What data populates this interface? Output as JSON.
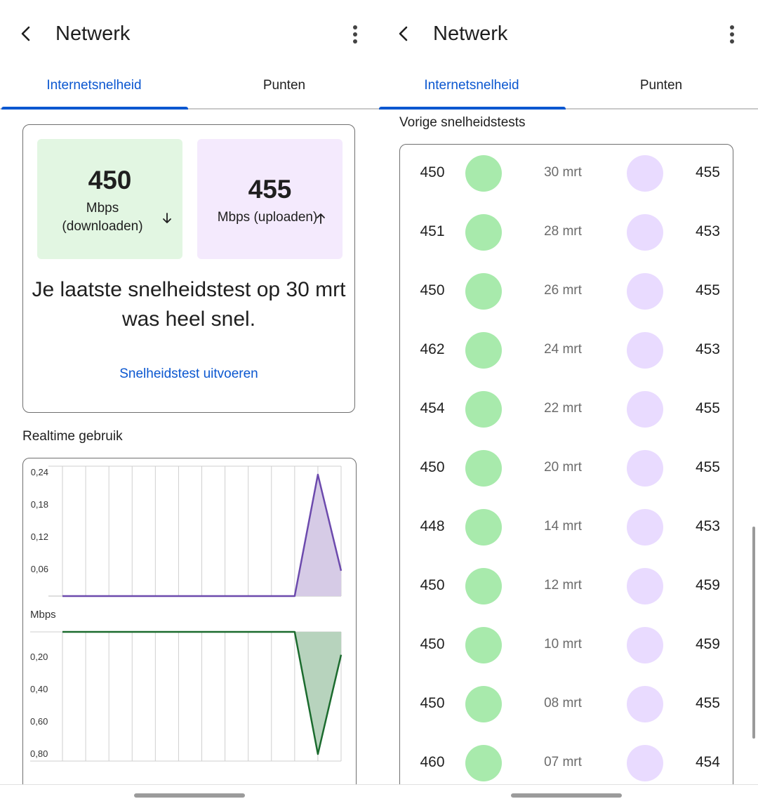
{
  "left": {
    "title": "Netwerk",
    "tabs": [
      "Internetsnelheid",
      "Punten"
    ],
    "download": {
      "value": "450",
      "label": "Mbps (downloaden)"
    },
    "upload": {
      "value": "455",
      "label": "Mbps (uploaden)"
    },
    "summary": "Je laatste snelheidstest op 30 mrt was heel snel.",
    "run_test_label": "Snelheidstest uitvoeren",
    "realtime_label": "Realtime gebruik",
    "colors": {
      "accent": "#0b57d0",
      "download_tile": "#e2f6e2",
      "upload_tile": "#f4eafd"
    }
  },
  "chart_data": [
    {
      "type": "area",
      "ylabel": "",
      "y_ticks": [
        "0,24",
        "0,18",
        "0,12",
        "0,06"
      ],
      "ylim": [
        0,
        0.24
      ],
      "x": [
        0,
        1,
        2,
        3,
        4,
        5,
        6,
        7,
        8,
        9,
        10,
        11,
        12
      ],
      "series": [
        {
          "values": [
            0,
            0,
            0,
            0,
            0,
            0,
            0,
            0,
            0,
            0,
            0,
            0.24,
            0.05
          ],
          "color": "#6c4aad"
        }
      ]
    },
    {
      "type": "area",
      "ylabel": "Mbps",
      "y_ticks": [
        "0,20",
        "0,40",
        "0,60",
        "0,80"
      ],
      "ylim": [
        0,
        0.8
      ],
      "inverted": true,
      "x": [
        0,
        1,
        2,
        3,
        4,
        5,
        6,
        7,
        8,
        9,
        10,
        11,
        12
      ],
      "series": [
        {
          "values": [
            0,
            0,
            0,
            0,
            0,
            0,
            0,
            0,
            0,
            0,
            0,
            0.8,
            0.15
          ],
          "color": "#1b6b2e"
        }
      ]
    }
  ],
  "right": {
    "title": "Netwerk",
    "tabs": [
      "Internetsnelheid",
      "Punten"
    ],
    "history_label": "Vorige snelheidstests",
    "tests": [
      {
        "download": "450",
        "date": "30 mrt",
        "upload": "455"
      },
      {
        "download": "451",
        "date": "28 mrt",
        "upload": "453"
      },
      {
        "download": "450",
        "date": "26 mrt",
        "upload": "455"
      },
      {
        "download": "462",
        "date": "24 mrt",
        "upload": "453"
      },
      {
        "download": "454",
        "date": "22 mrt",
        "upload": "455"
      },
      {
        "download": "450",
        "date": "20 mrt",
        "upload": "455"
      },
      {
        "download": "448",
        "date": "14 mrt",
        "upload": "453"
      },
      {
        "download": "450",
        "date": "12 mrt",
        "upload": "459"
      },
      {
        "download": "450",
        "date": "10 mrt",
        "upload": "459"
      },
      {
        "download": "450",
        "date": "08 mrt",
        "upload": "455"
      },
      {
        "download": "460",
        "date": "07 mrt",
        "upload": "454"
      }
    ]
  },
  "icons": {
    "back": "back-arrow-icon",
    "menu": "more-vert-icon",
    "download": "arrow-down-icon",
    "upload": "arrow-up-icon"
  }
}
